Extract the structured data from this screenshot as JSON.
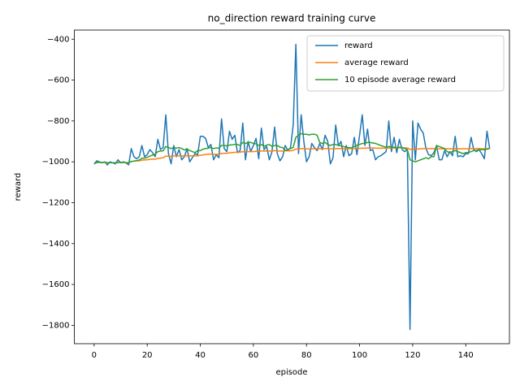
{
  "chart_data": {
    "type": "line",
    "title": "no_direction reward training curve",
    "x_label": "episode",
    "y_label": "reward",
    "x": [
      0,
      1,
      2,
      3,
      4,
      5,
      6,
      7,
      8,
      9,
      10,
      11,
      12,
      13,
      14,
      15,
      16,
      17,
      18,
      19,
      20,
      21,
      22,
      23,
      24,
      25,
      26,
      27,
      28,
      29,
      30,
      31,
      32,
      33,
      34,
      35,
      36,
      37,
      38,
      39,
      40,
      41,
      42,
      43,
      44,
      45,
      46,
      47,
      48,
      49,
      50,
      51,
      52,
      53,
      54,
      55,
      56,
      57,
      58,
      59,
      60,
      61,
      62,
      63,
      64,
      65,
      66,
      67,
      68,
      69,
      70,
      71,
      72,
      73,
      74,
      75,
      76,
      77,
      78,
      79,
      80,
      81,
      82,
      83,
      84,
      85,
      86,
      87,
      88,
      89,
      90,
      91,
      92,
      93,
      94,
      95,
      96,
      97,
      98,
      99,
      100,
      101,
      102,
      103,
      104,
      105,
      106,
      107,
      108,
      109,
      110,
      111,
      112,
      113,
      114,
      115,
      116,
      117,
      118,
      119,
      120,
      121,
      122,
      123,
      124,
      125,
      126,
      127,
      128,
      129,
      130,
      131,
      132,
      133,
      134,
      135,
      136,
      137,
      138,
      139,
      140,
      141,
      142,
      143,
      144,
      145,
      146,
      147,
      148,
      149
    ],
    "series": [
      {
        "name": "reward",
        "color": "#1f77b4",
        "values": [
          -1010,
          -995,
          -1000,
          -1005,
          -1000,
          -1015,
          -1000,
          -1005,
          -1010,
          -990,
          -1005,
          -1000,
          -1005,
          -1015,
          -935,
          -975,
          -985,
          -975,
          -920,
          -975,
          -965,
          -940,
          -955,
          -975,
          -890,
          -940,
          -930,
          -770,
          -960,
          -1010,
          -920,
          -975,
          -940,
          -990,
          -975,
          -935,
          -1000,
          -980,
          -960,
          -965,
          -875,
          -875,
          -885,
          -930,
          -915,
          -990,
          -965,
          -980,
          -790,
          -935,
          -950,
          -850,
          -890,
          -870,
          -955,
          -945,
          -810,
          -990,
          -900,
          -950,
          -920,
          -885,
          -985,
          -835,
          -940,
          -925,
          -990,
          -950,
          -830,
          -960,
          -995,
          -975,
          -920,
          -945,
          -930,
          -820,
          -425,
          -960,
          -770,
          -900,
          -1000,
          -975,
          -910,
          -930,
          -945,
          -910,
          -940,
          -870,
          -900,
          -1010,
          -980,
          -820,
          -920,
          -900,
          -975,
          -920,
          -970,
          -960,
          -880,
          -965,
          -870,
          -770,
          -920,
          -840,
          -945,
          -940,
          -990,
          -975,
          -970,
          -960,
          -950,
          -800,
          -950,
          -880,
          -955,
          -890,
          -940,
          -950,
          -940,
          -1820,
          -800,
          -990,
          -810,
          -840,
          -860,
          -935,
          -965,
          -970,
          -955,
          -920,
          -990,
          -990,
          -945,
          -975,
          -950,
          -970,
          -875,
          -975,
          -970,
          -975,
          -960,
          -960,
          -880,
          -940,
          -950,
          -940,
          -960,
          -985,
          -850,
          -935
        ]
      },
      {
        "name": "average reward",
        "color": "#ff7f0e",
        "values": [
          -1010,
          -1003,
          -1002,
          -1003,
          -1002,
          -1004,
          -1004,
          -1004,
          -1005,
          -1003,
          -1003,
          -1003,
          -1003,
          -1004,
          -999,
          -997,
          -996,
          -995,
          -992,
          -991,
          -990,
          -988,
          -987,
          -987,
          -983,
          -982,
          -980,
          -972,
          -972,
          -973,
          -971,
          -971,
          -971,
          -971,
          -971,
          -970,
          -971,
          -971,
          -971,
          -971,
          -968,
          -966,
          -964,
          -963,
          -962,
          -963,
          -963,
          -963,
          -959,
          -958,
          -958,
          -956,
          -955,
          -953,
          -953,
          -953,
          -950,
          -951,
          -950,
          -950,
          -950,
          -948,
          -949,
          -947,
          -947,
          -947,
          -947,
          -947,
          -945,
          -946,
          -947,
          -947,
          -946,
          -946,
          -946,
          -944,
          -937,
          -937,
          -935,
          -935,
          -936,
          -937,
          -936,
          -936,
          -936,
          -936,
          -936,
          -935,
          -935,
          -936,
          -936,
          -935,
          -935,
          -935,
          -935,
          -935,
          -935,
          -935,
          -935,
          -935,
          -934,
          -933,
          -933,
          -932,
          -932,
          -932,
          -933,
          -933,
          -933,
          -933,
          -933,
          -932,
          -932,
          -932,
          -932,
          -931,
          -931,
          -931,
          -932,
          -939,
          -938,
          -938,
          -937,
          -936,
          -935,
          -935,
          -935,
          -935,
          -935,
          -935,
          -936,
          -936,
          -936,
          -936,
          -936,
          -936,
          -935,
          -936,
          -936,
          -936,
          -936,
          -936,
          -935,
          -935,
          -935,
          -935,
          -936,
          -936,
          -935,
          -935
        ]
      },
      {
        "name": "10 episode average reward",
        "color": "#2ca02c",
        "values": [
          -1010,
          -1003,
          -1002,
          -1003,
          -1002,
          -1004,
          -1004,
          -1004,
          -1005,
          -1003,
          -1002,
          -1003,
          -1004,
          -1005,
          -998,
          -996,
          -994,
          -991,
          -983,
          -982,
          -978,
          -972,
          -967,
          -963,
          -950,
          -947,
          -946,
          -925,
          -930,
          -935,
          -930,
          -933,
          -930,
          -935,
          -942,
          -937,
          -945,
          -950,
          -955,
          -945,
          -945,
          -938,
          -935,
          -933,
          -930,
          -935,
          -932,
          -933,
          -920,
          -920,
          -922,
          -918,
          -917,
          -915,
          -915,
          -920,
          -905,
          -910,
          -905,
          -905,
          -910,
          -912,
          -920,
          -915,
          -925,
          -918,
          -915,
          -925,
          -920,
          -920,
          -928,
          -930,
          -945,
          -940,
          -935,
          -930,
          -880,
          -870,
          -862,
          -865,
          -865,
          -868,
          -865,
          -865,
          -870,
          -905,
          -910,
          -905,
          -915,
          -920,
          -915,
          -915,
          -920,
          -922,
          -925,
          -930,
          -930,
          -932,
          -925,
          -918,
          -915,
          -910,
          -910,
          -905,
          -905,
          -908,
          -910,
          -915,
          -920,
          -925,
          -928,
          -925,
          -930,
          -928,
          -932,
          -928,
          -930,
          -935,
          -940,
          -990,
          -995,
          -1000,
          -995,
          -990,
          -985,
          -980,
          -985,
          -975,
          -975,
          -920,
          -925,
          -930,
          -935,
          -950,
          -955,
          -950,
          -945,
          -950,
          -955,
          -960,
          -955,
          -955,
          -950,
          -945,
          -945,
          -940,
          -940,
          -940,
          -938,
          -935
        ]
      }
    ],
    "xlim": [
      -7.45,
      156.45
    ],
    "xticks": [
      0,
      20,
      40,
      60,
      80,
      100,
      120,
      140
    ],
    "ylim": [
      -1889.75,
      -355.25
    ],
    "yticks": [
      {
        "value": -1800,
        "label": "−1800"
      },
      {
        "value": -1600,
        "label": "−1600"
      },
      {
        "value": -1400,
        "label": "−1400"
      },
      {
        "value": -1200,
        "label": "−1200"
      },
      {
        "value": -1000,
        "label": "−1000"
      },
      {
        "value": -800,
        "label": "−800"
      },
      {
        "value": -600,
        "label": "−600"
      },
      {
        "value": -400,
        "label": "−400"
      }
    ],
    "grid": false,
    "legend": "upper right"
  }
}
